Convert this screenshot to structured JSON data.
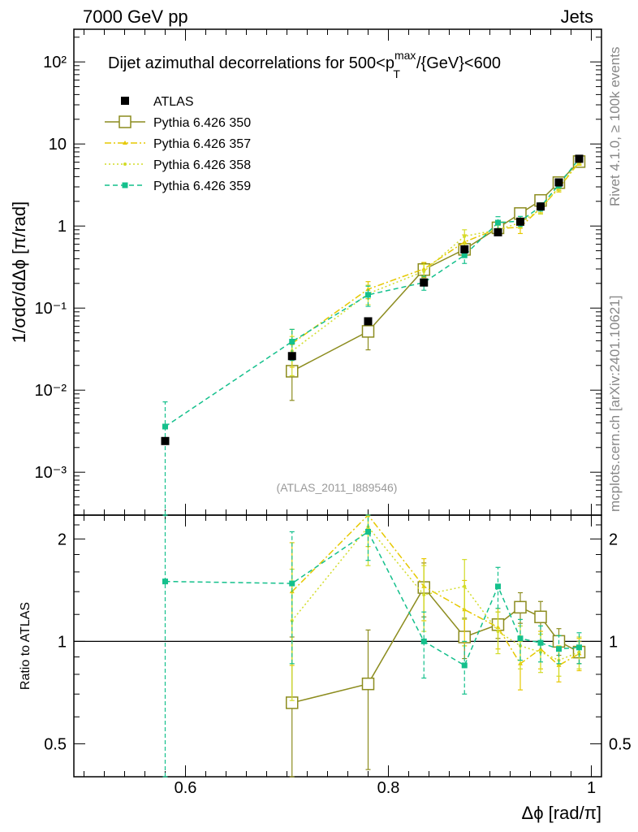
{
  "header": {
    "left": "7000 GeV pp",
    "right": "Jets"
  },
  "side": {
    "top": "Rivet 4.1.0, ≥ 100k events",
    "bottom": "mcplots.cern.ch [arXiv:2401.10621]"
  },
  "analysis_id": "(ATLAS_2011_I889546)",
  "colors": {
    "atlas": "#000000",
    "p350": "#8c8c1e",
    "p357": "#e6c800",
    "p358": "#d2dc28",
    "p359": "#14c08c"
  },
  "chart_data": [
    {
      "type": "scatter",
      "title": "Dijet azimuthal decorrelations for 500<p_T^max/{GeV}<600",
      "title_parts": {
        "pre": "Dijet azimuthal decorrelations for 500<p",
        "sup": "max",
        "sub": "T",
        "post": "/{GeV}<600"
      },
      "xlabel": "Δϕ [rad/π]",
      "ylabel": "1/σdσ/dΔϕ [π/rad]",
      "xlim": [
        0.49,
        1.01
      ],
      "ylim": [
        0.0003,
        250
      ],
      "yscale": "log",
      "ytick_labels": [
        "10⁻³",
        "10⁻²",
        "10⁻¹",
        "1",
        "10",
        "10²"
      ],
      "legend": [
        {
          "label": "ATLAS",
          "key": "atlas"
        },
        {
          "label": "Pythia 6.426 350",
          "key": "p350"
        },
        {
          "label": "Pythia 6.426 357",
          "key": "p357"
        },
        {
          "label": "Pythia 6.426 358",
          "key": "p358"
        },
        {
          "label": "Pythia 6.426 359",
          "key": "p359"
        }
      ],
      "series": [
        {
          "name": "ATLAS",
          "key": "atlas",
          "x": [
            0.58,
            0.705,
            0.78,
            0.835,
            0.875,
            0.908,
            0.93,
            0.95,
            0.968,
            0.988
          ],
          "y": [
            0.0024,
            0.026,
            0.069,
            0.205,
            0.52,
            0.84,
            1.13,
            1.73,
            3.4,
            6.6
          ],
          "err": [
            0.0002,
            0.0025,
            0.005,
            0.02,
            0.04,
            0.08,
            0.1,
            0.12,
            0.25,
            0.5
          ]
        },
        {
          "name": "Pythia 6.426 350",
          "key": "p350",
          "x": [
            0.705,
            0.78,
            0.835,
            0.875,
            0.908,
            0.93,
            0.95,
            0.968,
            0.988
          ],
          "y": [
            0.017,
            0.052,
            0.295,
            0.52,
            0.95,
            1.42,
            2.05,
            3.38,
            6.1
          ],
          "err": [
            0.0095,
            0.021,
            0.06,
            0.08,
            0.12,
            0.17,
            0.2,
            0.3,
            0.4
          ]
        },
        {
          "name": "Pythia 6.426 357",
          "key": "p357",
          "x": [
            0.705,
            0.78,
            0.835,
            0.875,
            0.908,
            0.93,
            0.95,
            0.968,
            0.988
          ],
          "y": [
            0.037,
            0.17,
            0.3,
            0.64,
            0.93,
            0.97,
            1.65,
            2.9,
            6.0
          ],
          "err": [
            0.018,
            0.04,
            0.06,
            0.14,
            0.12,
            0.16,
            0.2,
            0.3,
            0.5
          ]
        },
        {
          "name": "Pythia 6.426 358",
          "key": "p358",
          "x": [
            0.705,
            0.78,
            0.835,
            0.875,
            0.908,
            0.93,
            0.95,
            0.968,
            0.988
          ],
          "y": [
            0.03,
            0.15,
            0.28,
            0.75,
            0.9,
            1.1,
            1.6,
            3.0,
            6.1
          ],
          "err": [
            0.015,
            0.04,
            0.06,
            0.15,
            0.12,
            0.15,
            0.2,
            0.3,
            0.5
          ]
        },
        {
          "name": "Pythia 6.426 359",
          "key": "p359",
          "x": [
            0.58,
            0.705,
            0.78,
            0.835,
            0.875,
            0.908,
            0.93,
            0.95,
            0.968,
            0.988
          ],
          "y": [
            0.0036,
            0.039,
            0.145,
            0.205,
            0.44,
            1.1,
            1.15,
            1.72,
            3.2,
            6.6
          ],
          "err": [
            0.0036,
            0.016,
            0.04,
            0.04,
            0.09,
            0.2,
            0.16,
            0.2,
            0.3,
            0.5
          ]
        }
      ]
    },
    {
      "type": "scatter",
      "title": "",
      "xlabel": "Δϕ [rad/π]",
      "ylabel": "Ratio to ATLAS",
      "xlim": [
        0.49,
        1.01
      ],
      "ylim": [
        0.4,
        2.35
      ],
      "yscale": "log",
      "ytick_labels": [
        "0.5",
        "1",
        "2"
      ],
      "xtick_labels": [
        "0.6",
        "0.8",
        "1"
      ],
      "reference_line": 1,
      "series": [
        {
          "name": "Pythia 6.426 350",
          "key": "p350",
          "x": [
            0.705,
            0.78,
            0.835,
            0.875,
            0.908,
            0.93,
            0.95,
            0.968,
            0.988
          ],
          "y": [
            0.66,
            0.75,
            1.44,
            1.03,
            1.12,
            1.26,
            1.18,
            1.0,
            0.93
          ],
          "err": [
            0.37,
            0.33,
            0.26,
            0.14,
            0.1,
            0.13,
            0.13,
            0.09,
            0.07
          ]
        },
        {
          "name": "Pythia 6.426 357",
          "key": "p357",
          "x": [
            0.705,
            0.78,
            0.835,
            0.875,
            0.908,
            0.93,
            0.95,
            0.968,
            0.988
          ],
          "y": [
            1.4,
            2.4,
            1.45,
            1.24,
            1.1,
            0.86,
            0.95,
            0.85,
            0.92
          ],
          "err": [
            0.55,
            0.5,
            0.3,
            0.27,
            0.15,
            0.14,
            0.12,
            0.09,
            0.1
          ]
        },
        {
          "name": "Pythia 6.426 358",
          "key": "p358",
          "x": [
            0.705,
            0.78,
            0.835,
            0.875,
            0.908,
            0.93,
            0.95,
            0.968,
            0.988
          ],
          "y": [
            1.15,
            2.17,
            1.37,
            1.45,
            1.07,
            0.97,
            0.93,
            0.88,
            0.93
          ],
          "err": [
            0.48,
            0.5,
            0.3,
            0.29,
            0.15,
            0.14,
            0.12,
            0.09,
            0.1
          ]
        },
        {
          "name": "Pythia 6.426 359",
          "key": "p359",
          "x": [
            0.58,
            0.705,
            0.78,
            0.835,
            0.875,
            0.908,
            0.93,
            0.95,
            0.968,
            0.988
          ],
          "y": [
            1.5,
            1.48,
            2.1,
            1.0,
            0.85,
            1.45,
            1.02,
            0.99,
            0.95,
            0.96
          ],
          "err": [
            1.1,
            0.62,
            0.37,
            0.22,
            0.15,
            0.2,
            0.14,
            0.12,
            0.09,
            0.1
          ]
        }
      ]
    }
  ]
}
